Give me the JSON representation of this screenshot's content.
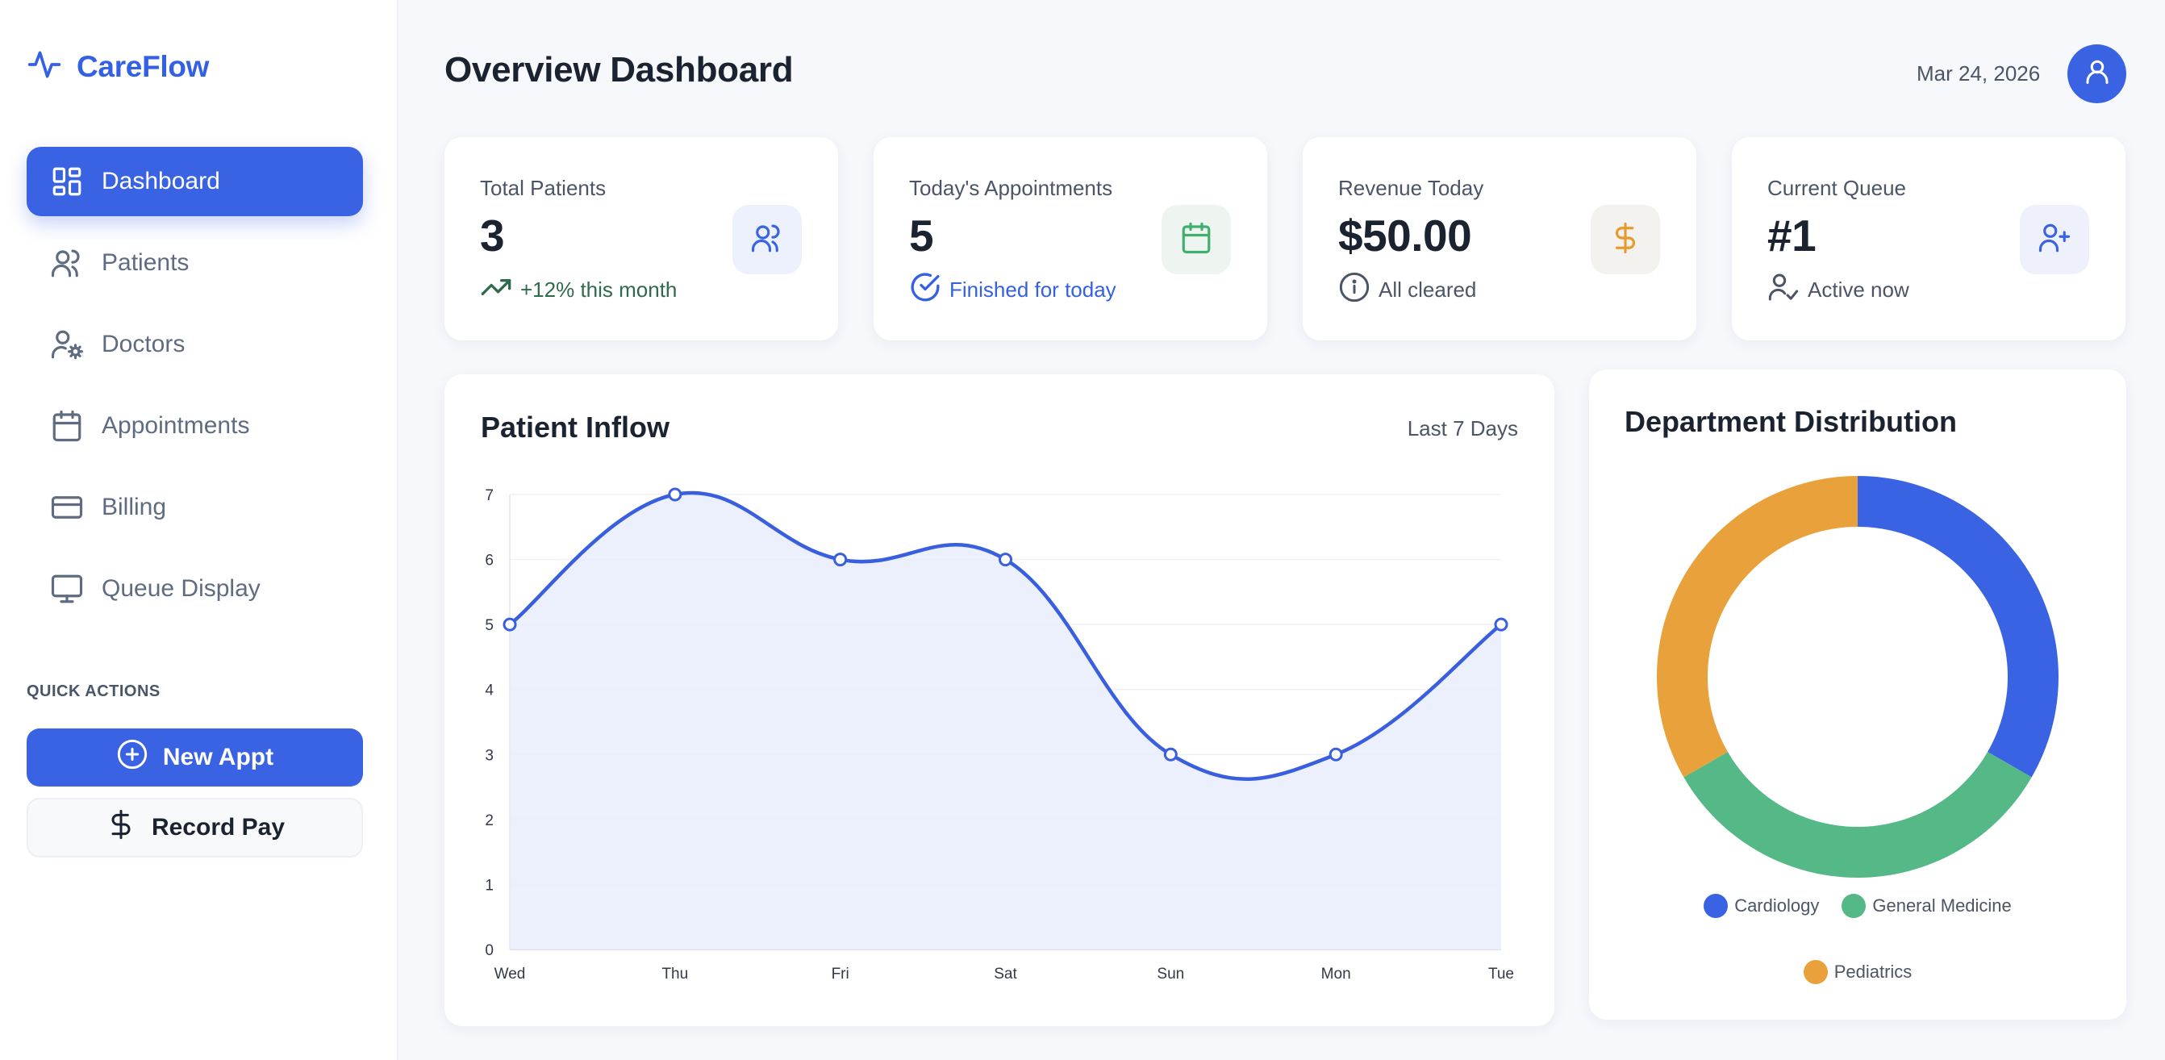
{
  "brand": {
    "name": "CareFlow",
    "logo_icon": "activity-icon",
    "color": "#3461e3"
  },
  "sidebar": {
    "items": [
      {
        "label": "Dashboard",
        "icon": "dashboard-icon",
        "active": true
      },
      {
        "label": "Patients",
        "icon": "users-icon",
        "active": false
      },
      {
        "label": "Doctors",
        "icon": "user-cog-icon",
        "active": false
      },
      {
        "label": "Appointments",
        "icon": "calendar-icon",
        "active": false
      },
      {
        "label": "Billing",
        "icon": "credit-card-icon",
        "active": false
      },
      {
        "label": "Queue Display",
        "icon": "monitor-icon",
        "active": false
      }
    ],
    "quick_actions_title": "QUICK ACTIONS",
    "new_appt_label": "New Appt",
    "record_pay_label": "Record Pay"
  },
  "header": {
    "title": "Overview Dashboard",
    "date": "Mar 24, 2026",
    "avatar_icon": "user-icon"
  },
  "stats": [
    {
      "title": "Total Patients",
      "value": "3",
      "sub": "+12% this month",
      "sub_icon": "trending-up-icon",
      "tile_icon": "users-icon",
      "accent": "#3a63e3",
      "sub_color": "#2f6b4a"
    },
    {
      "title": "Today's Appointments",
      "value": "5",
      "sub": "Finished for today",
      "sub_icon": "check-circle-icon",
      "tile_icon": "calendar-icon",
      "accent": "#3fae6e",
      "sub_color": "#3461e3"
    },
    {
      "title": "Revenue Today",
      "value": "$50.00",
      "sub": "All cleared",
      "sub_icon": "info-icon",
      "tile_icon": "dollar-icon",
      "accent": "#e89a2e",
      "sub_color": "#4b5566"
    },
    {
      "title": "Current Queue",
      "value": "#1",
      "sub": "Active now",
      "sub_icon": "user-check-icon",
      "tile_icon": "user-plus-icon",
      "accent": "#3a63e3",
      "sub_color": "#4b5566"
    }
  ],
  "inflow": {
    "title": "Patient Inflow",
    "range": "Last 7 Days"
  },
  "distribution": {
    "title": "Department Distribution"
  },
  "chart_data": [
    {
      "type": "area",
      "title": "Patient Inflow",
      "categories": [
        "Wed",
        "Thu",
        "Fri",
        "Sat",
        "Sun",
        "Mon",
        "Tue"
      ],
      "series": [
        {
          "values": [
            5,
            7,
            6,
            6,
            3,
            3,
            5
          ]
        }
      ],
      "ylim": [
        0,
        7
      ],
      "yticks": [
        0,
        1,
        2,
        3,
        4,
        5,
        6,
        7
      ],
      "smooth": true,
      "grid": true,
      "color": "#3a5fde",
      "fill": "#e9ecfb"
    },
    {
      "type": "pie",
      "donut": true,
      "title": "Department Distribution",
      "labels": [
        "Cardiology",
        "General Medicine",
        "Pediatrics"
      ],
      "values": [
        1,
        1,
        1
      ],
      "colors": [
        "#3a63e3",
        "#55b887",
        "#e9a23b"
      ],
      "legend": "bottom"
    }
  ]
}
